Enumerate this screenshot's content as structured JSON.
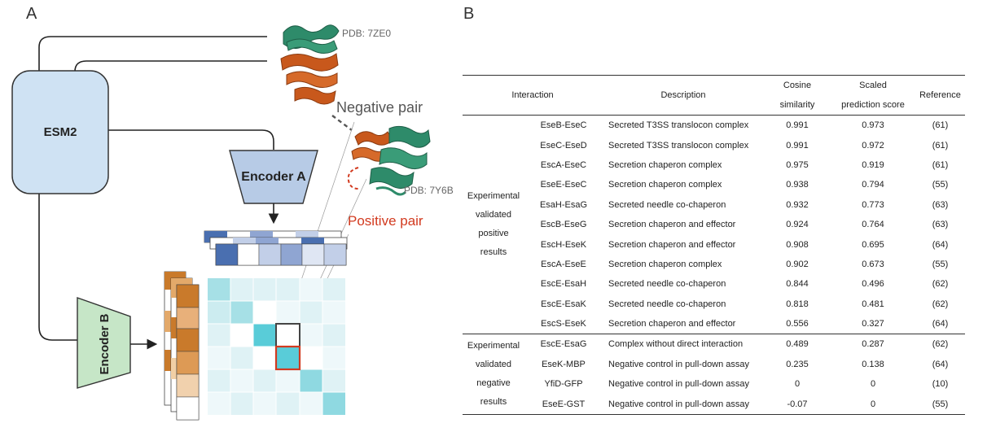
{
  "panel_a": {
    "letter": "A",
    "esm_label": "ESM2",
    "encoder_a_label": "Encoder A",
    "encoder_b_label": "Encoder B",
    "pdb_top": "PDB: 7ZE0",
    "pdb_bottom": "PDB: 7Y6B",
    "negative_pair": "Negative pair",
    "positive_pair": "Positive pair",
    "colors": {
      "esm_fill": "#cfe2f3",
      "encoder_a_fill": "#b7cbe6",
      "encoder_b_fill": "#c6e6c7",
      "protein_green": "#2e8b6a",
      "protein_orange": "#c8581c",
      "positive_red": "#d23a1f",
      "highlight_cyan": "#59ccd8",
      "vector_blue": "#4a6fb0",
      "vector_orange": "#c97a2b"
    },
    "icons": [
      "protein-structure-7ze0-icon",
      "protein-structure-7y6b-icon"
    ]
  },
  "panel_b": {
    "letter": "B",
    "headers": {
      "interaction": "Interaction",
      "description": "Description",
      "cosine_line1": "Cosine",
      "cosine_line2": "similarity",
      "scaled_line1": "Scaled",
      "scaled_line2": "prediction score",
      "reference": "Reference"
    },
    "groups": [
      {
        "label_lines": [
          "Experimental",
          "validated",
          "positive",
          "results"
        ],
        "rows": [
          {
            "interaction": "EseB-EseC",
            "description": "Secreted T3SS translocon complex",
            "cosine": "0.991",
            "scaled": "0.973",
            "reference": "(61)"
          },
          {
            "interaction": "EseC-EseD",
            "description": "Secreted T3SS translocon complex",
            "cosine": "0.991",
            "scaled": "0.972",
            "reference": "(61)"
          },
          {
            "interaction": "EscA-EseC",
            "description": "Secretion chaperon complex",
            "cosine": "0.975",
            "scaled": "0.919",
            "reference": "(61)"
          },
          {
            "interaction": "EseE-EseC",
            "description": "Secretion chaperon complex",
            "cosine": "0.938",
            "scaled": "0.794",
            "reference": "(55)"
          },
          {
            "interaction": "EsaH-EsaG",
            "description": "Secreted needle co-chaperon",
            "cosine": "0.932",
            "scaled": "0.773",
            "reference": "(63)"
          },
          {
            "interaction": "EscB-EseG",
            "description": "Secretion chaperon and effector",
            "cosine": "0.924",
            "scaled": "0.764",
            "reference": "(63)"
          },
          {
            "interaction": "EscH-EseK",
            "description": "Secretion chaperon and effector",
            "cosine": "0.908",
            "scaled": "0.695",
            "reference": "(64)"
          },
          {
            "interaction": "EscA-EseE",
            "description": "Secretion chaperon complex",
            "cosine": "0.902",
            "scaled": "0.673",
            "reference": "(55)"
          },
          {
            "interaction": "EscE-EsaH",
            "description": "Secreted needle co-chaperon",
            "cosine": "0.844",
            "scaled": "0.496",
            "reference": "(62)"
          },
          {
            "interaction": "EscE-EsaK",
            "description": "Secreted needle co-chaperon",
            "cosine": "0.818",
            "scaled": "0.481",
            "reference": "(62)"
          },
          {
            "interaction": "EscS-EseK",
            "description": "Secretion chaperon and effector",
            "cosine": "0.556",
            "scaled": "0.327",
            "reference": "(64)"
          }
        ]
      },
      {
        "label_lines": [
          "Experimental",
          "validated",
          "negative",
          "results"
        ],
        "rows": [
          {
            "interaction": "EscE-EsaG",
            "description": "Complex without direct interaction",
            "cosine": "0.489",
            "scaled": "0.287",
            "reference": "(62)"
          },
          {
            "interaction": "EseK-MBP",
            "description": "Negative control in pull-down assay",
            "cosine": "0.235",
            "scaled": "0.138",
            "reference": "(64)"
          },
          {
            "interaction": "YfiD-GFP",
            "description": "Negative control in pull-down assay",
            "cosine": "0",
            "scaled": "0",
            "reference": "(10)"
          },
          {
            "interaction": "EseE-GST",
            "description": "Negative control in pull-down assay",
            "cosine": "-0.07",
            "scaled": "0",
            "reference": "(55)"
          }
        ]
      }
    ]
  }
}
